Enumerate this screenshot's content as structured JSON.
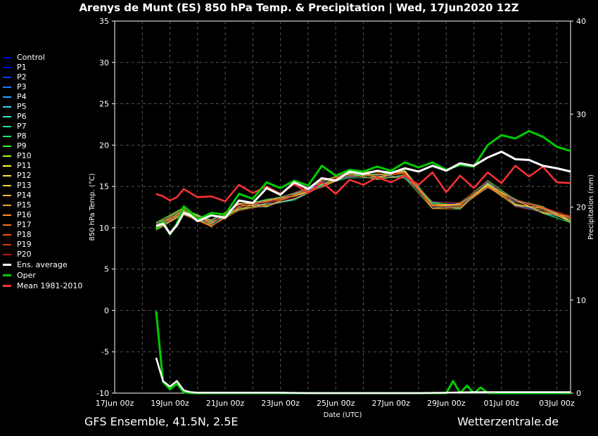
{
  "title": "Arenys de Munt  (ES)  850 hPa Temp. & Precipitation | Wed, 17Jun2020 12Z",
  "footer_left": "GFS Ensemble, 41.5N, 2.5E",
  "footer_right": "Wetterzentrale.de",
  "colors": {
    "background": "#000000",
    "grid": "#555555",
    "axis": "#ffffff"
  },
  "legend": [
    {
      "label": "Control",
      "color": "#0000cc"
    },
    {
      "label": "P1",
      "color": "#0000ff"
    },
    {
      "label": "P2",
      "color": "#0a3cf0"
    },
    {
      "label": "P3",
      "color": "#1e78ff"
    },
    {
      "label": "P4",
      "color": "#28a0ff"
    },
    {
      "label": "P5",
      "color": "#32d2ff"
    },
    {
      "label": "P6",
      "color": "#28e6c8"
    },
    {
      "label": "P7",
      "color": "#1ee696"
    },
    {
      "label": "P8",
      "color": "#14f064"
    },
    {
      "label": "P9",
      "color": "#28ff28"
    },
    {
      "label": "P10",
      "color": "#a0ff14"
    },
    {
      "label": "P11",
      "color": "#ffff32"
    },
    {
      "label": "P12",
      "color": "#ffe632"
    },
    {
      "label": "P13",
      "color": "#ffd232"
    },
    {
      "label": "P14",
      "color": "#ffbe32"
    },
    {
      "label": "P15",
      "color": "#ffa032"
    },
    {
      "label": "P16",
      "color": "#ff8c28"
    },
    {
      "label": "P17",
      "color": "#ff6e1e"
    },
    {
      "label": "P18",
      "color": "#f05014"
    },
    {
      "label": "P19",
      "color": "#dc3c14"
    },
    {
      "label": "P20",
      "color": "#c8141e"
    },
    {
      "label": "Ens. average",
      "color": "#ffffff"
    },
    {
      "label": "Oper",
      "color": "#00cc00"
    },
    {
      "label": "Mean 1981-2010",
      "color": "#ff3333"
    }
  ],
  "chart_data": {
    "type": "line",
    "xlabel": "Date (UTC)",
    "ylabel": "850 hPa Temp. (°C)",
    "ylabel_right": "Precipitation (mm)",
    "x_ticks": [
      "17Jun 00z",
      "19Jun 00z",
      "21Jun 00z",
      "23Jun 00z",
      "25Jun 00z",
      "27Jun 00z",
      "29Jun 00z",
      "01Jul 00z",
      "03Jul 00z"
    ],
    "x_range_days": [
      0,
      16.5
    ],
    "ylim": [
      -10,
      35
    ],
    "y_ticks": [
      -10,
      -5,
      0,
      5,
      10,
      15,
      20,
      25,
      30,
      35
    ],
    "y2lim": [
      0,
      40
    ],
    "y2_ticks": [
      0,
      10,
      20,
      30,
      40
    ],
    "grid": true,
    "temperature_series": {
      "Ens. average": {
        "x": [
          1.5,
          1.75,
          2,
          2.25,
          2.5,
          2.75,
          3,
          3.5,
          4,
          4.5,
          5,
          5.5,
          6,
          6.5,
          7,
          7.5,
          8,
          8.5,
          9,
          9.5,
          10,
          10.5,
          11,
          11.5,
          12,
          12.5,
          13,
          13.5,
          14,
          14.5,
          15,
          15.5,
          16,
          16.5
        ],
        "y": [
          10.2,
          10.5,
          9.3,
          10.3,
          11.8,
          11.5,
          10.8,
          11.5,
          11.2,
          13.3,
          13,
          14.8,
          14,
          15.5,
          14.7,
          16,
          15.7,
          16.8,
          16.5,
          16.9,
          16.6,
          17.2,
          16.8,
          17.5,
          16.9,
          17.8,
          17.5,
          18.5,
          19.2,
          18.3,
          18.2,
          17.5,
          17.2,
          16.8
        ]
      },
      "Oper": {
        "x": [
          1.5,
          1.75,
          2,
          2.25,
          2.5,
          2.75,
          3,
          3.5,
          4,
          4.5,
          5,
          5.5,
          6,
          6.5,
          7,
          7.5,
          8,
          8.5,
          9,
          9.5,
          10,
          10.5,
          11,
          11.5,
          12,
          12.5,
          13,
          13.5,
          14,
          14.5,
          15,
          15.5,
          16,
          16.5
        ],
        "y": [
          9.8,
          10.8,
          9.2,
          10.5,
          12.6,
          11.9,
          11,
          11.8,
          11.6,
          14.1,
          13.5,
          15.5,
          14.8,
          15.7,
          15.1,
          17.5,
          16.3,
          17,
          16.8,
          17.4,
          16.9,
          17.9,
          17.3,
          17.9,
          17,
          17.6,
          17.4,
          20,
          21.2,
          20.8,
          21.7,
          21,
          19.8,
          19.3
        ]
      },
      "Mean 1981-2010": {
        "x": [
          1.5,
          1.75,
          2,
          2.25,
          2.5,
          2.75,
          3,
          3.5,
          4,
          4.5,
          5,
          5.5,
          6,
          6.5,
          7,
          7.5,
          8,
          8.5,
          9,
          9.5,
          10,
          10.5,
          11,
          11.5,
          12,
          12.5,
          13,
          13.5,
          14,
          14.5,
          15,
          15.5,
          16,
          16.5
        ],
        "y": [
          14.1,
          13.8,
          13.3,
          13.7,
          14.7,
          14.2,
          13.7,
          13.8,
          13.2,
          15.2,
          14.2,
          15,
          14.1,
          15.3,
          14.2,
          15.5,
          14.1,
          15.8,
          15.2,
          16.1,
          15.5,
          16.3,
          15.2,
          16.7,
          14.3,
          16.3,
          14.8,
          16.7,
          15.4,
          17.5,
          16.2,
          17.4,
          15.5,
          15.4
        ]
      }
    },
    "temperature_members_spread": {
      "x": [
        1.5,
        2.5,
        3.5,
        4.5,
        5.5,
        6.5,
        7.5,
        8.5,
        9.5,
        10.5,
        11.5,
        12.5,
        13.5,
        14.5,
        15.5,
        16.5
      ],
      "min": [
        9.7,
        11.5,
        10.1,
        12,
        12.5,
        13.3,
        14.8,
        16,
        15.8,
        16,
        12.3,
        12.2,
        14.8,
        12.5,
        11.7,
        10.5
      ],
      "max": [
        10.7,
        12.6,
        12.3,
        14.2,
        15.8,
        16.8,
        17.6,
        17.5,
        18,
        19,
        20.2,
        22.1,
        21.5,
        24.8,
        21.3,
        20.5
      ]
    },
    "precipitation_mm": {
      "Oper": {
        "x": [
          1.5,
          1.75,
          2,
          2.25,
          2.5,
          2.75,
          3,
          4,
          5,
          6,
          7,
          8,
          9,
          10,
          11,
          12,
          12.25,
          12.5,
          12.75,
          13,
          13.25,
          13.5,
          14,
          15,
          16,
          16.5
        ],
        "y": [
          8.8,
          1.2,
          0.4,
          1,
          0.1,
          0,
          0,
          0,
          0,
          0,
          0,
          0,
          0,
          0,
          0,
          0,
          1.3,
          0,
          0.8,
          0,
          0.6,
          0,
          0,
          0,
          0,
          0
        ]
      },
      "Ens. average": {
        "x": [
          1.5,
          1.75,
          2,
          2.25,
          2.5,
          2.75,
          3,
          4,
          5,
          6,
          7,
          8,
          9,
          10,
          11,
          12,
          13,
          14,
          15,
          16,
          16.5
        ],
        "y": [
          3.8,
          1.3,
          0.7,
          1.3,
          0.3,
          0.1,
          0.05,
          0.05,
          0.05,
          0.05,
          0,
          0,
          0,
          0,
          0,
          0.05,
          0.1,
          0.1,
          0.1,
          0.1,
          0.1
        ]
      }
    }
  }
}
